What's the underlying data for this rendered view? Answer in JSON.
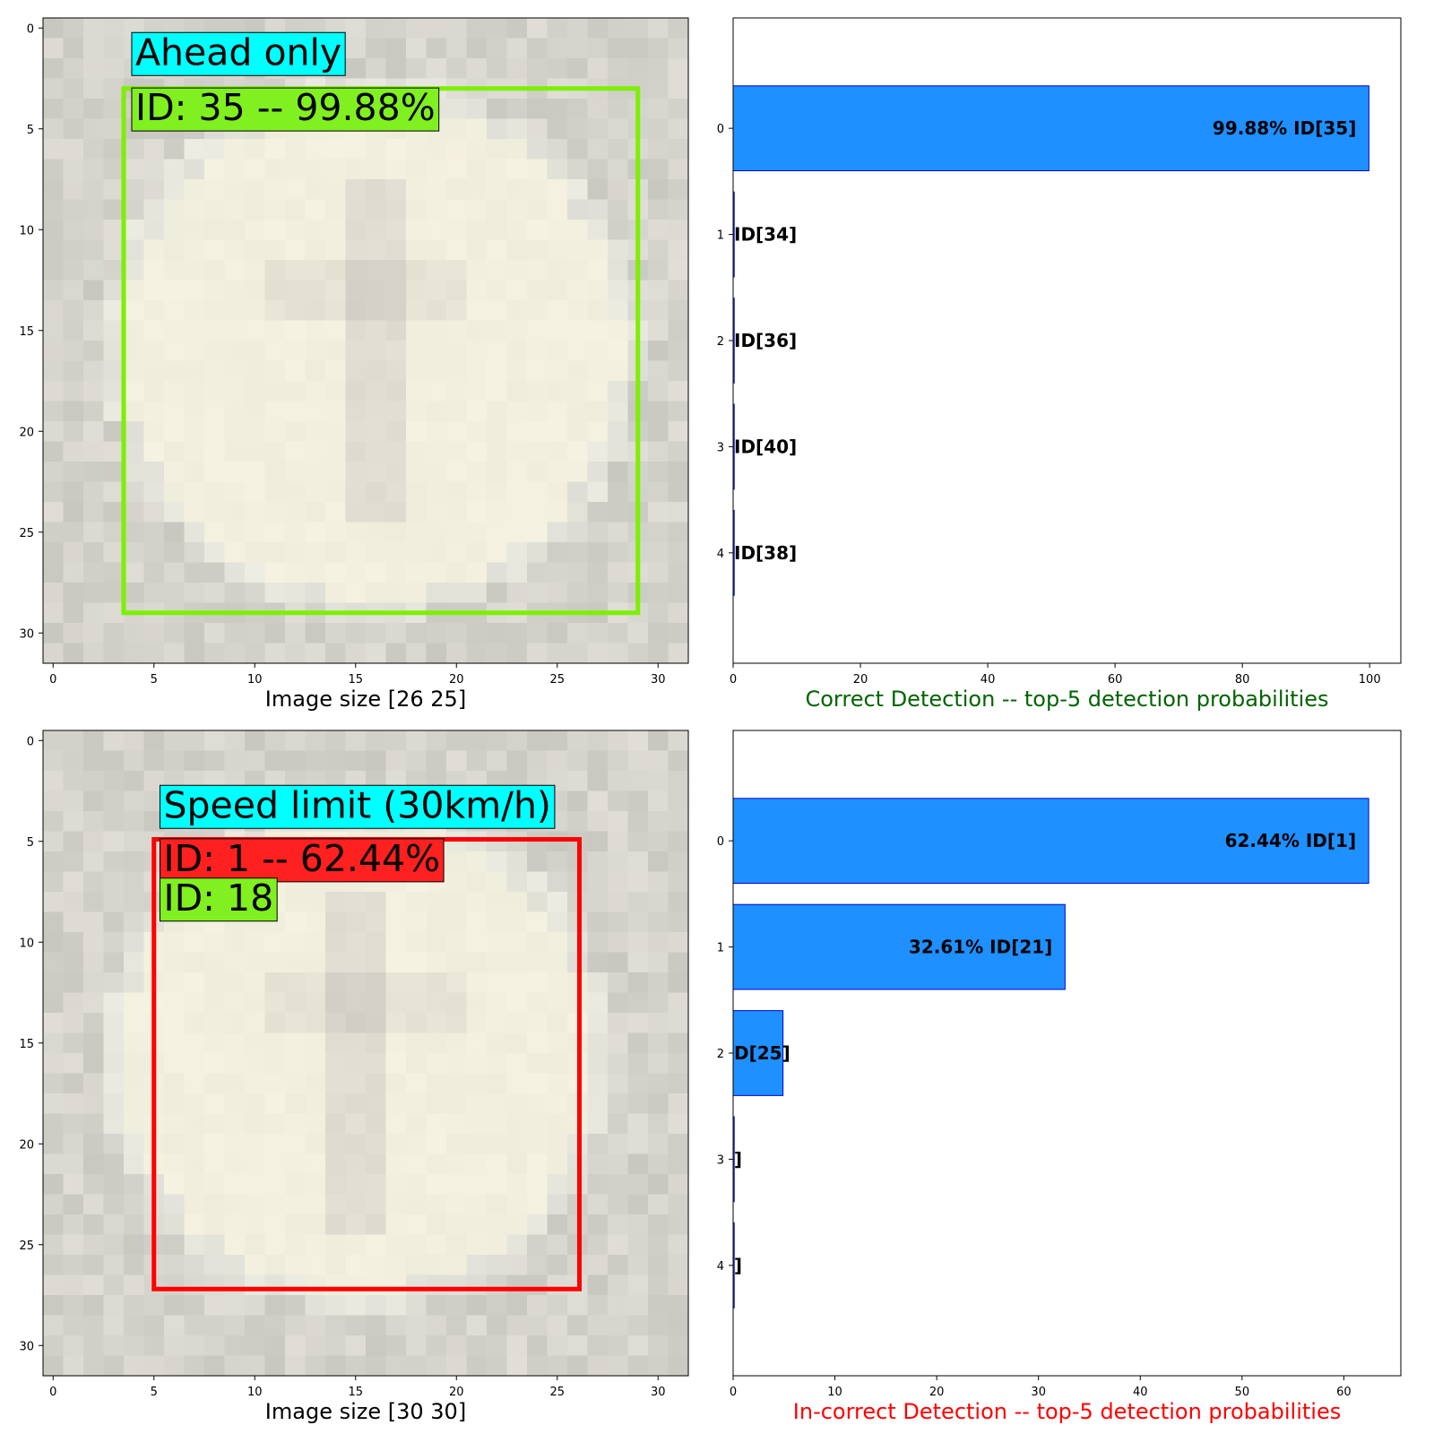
{
  "colors": {
    "bar_fill": "#1e90ff",
    "bar_edge": "#0000cd",
    "label_cyan": "#00ffff",
    "label_green": "#80f020",
    "label_red": "#ff2020",
    "box_green": "#7cf000",
    "box_red": "#ff0000",
    "correct_title": "#006400",
    "incorrect_title": "#ff0000"
  },
  "panels": [
    {
      "image": {
        "xlabel": "Image size [26 25]",
        "xticks": [
          0,
          5,
          10,
          15,
          20,
          25,
          30
        ],
        "yticks": [
          0,
          5,
          10,
          15,
          20,
          25,
          30
        ],
        "box": {
          "x0": 3.5,
          "y0": 3,
          "x1": 29,
          "y1": 29,
          "color": "box_green"
        },
        "labels": [
          {
            "text": "Ahead only",
            "bg": "label_cyan",
            "x": 3.9,
            "y": 1.2
          },
          {
            "text": "ID: 35 -- 99.88%",
            "bg": "label_green",
            "x": 3.9,
            "y": 3.95
          }
        ]
      },
      "chart": {
        "type": "bar",
        "orientation": "horizontal",
        "title": "Correct Detection -- top-5 detection probabilities",
        "title_color": "correct_title",
        "categories": [
          "0",
          "1",
          "2",
          "3",
          "4"
        ],
        "values": [
          99.88,
          0.08,
          0.02,
          0.01,
          0.01
        ],
        "bar_labels": [
          "99.88% ID[35]",
          "ID[34]",
          "ID[36]",
          "ID[40]",
          "ID[38]"
        ],
        "xticks": [
          0,
          20,
          40,
          60,
          80,
          100
        ],
        "xlim": [
          0,
          104.9
        ]
      }
    },
    {
      "image": {
        "xlabel": "Image size [30 30]",
        "xticks": [
          0,
          5,
          10,
          15,
          20,
          25,
          30
        ],
        "yticks": [
          0,
          5,
          10,
          15,
          20,
          25,
          30
        ],
        "box": {
          "x0": 5,
          "y0": 4.9,
          "x1": 26.1,
          "y1": 27.2,
          "color": "box_red"
        },
        "labels": [
          {
            "text": "Speed limit (30km/h)",
            "bg": "label_cyan",
            "x": 5.3,
            "y": 3.2
          },
          {
            "text": "ID: 1 -- 62.44%",
            "bg": "label_red",
            "x": 5.3,
            "y": 5.85
          },
          {
            "text": "ID: 18",
            "bg": "label_green",
            "x": 5.3,
            "y": 7.8
          }
        ]
      },
      "chart": {
        "type": "bar",
        "orientation": "horizontal",
        "title": "In-correct Detection -- top-5 detection probabilities",
        "title_color": "incorrect_title",
        "categories": [
          "0",
          "1",
          "2",
          "3",
          "4"
        ],
        "values": [
          62.44,
          32.61,
          4.9,
          0.03,
          0.01
        ],
        "bar_labels": [
          "62.44% ID[1]",
          "32.61% ID[21]",
          "D[25]",
          "]",
          "]"
        ],
        "xticks": [
          0,
          10,
          20,
          30,
          40,
          50,
          60
        ],
        "xlim": [
          0,
          65.6
        ]
      }
    }
  ]
}
